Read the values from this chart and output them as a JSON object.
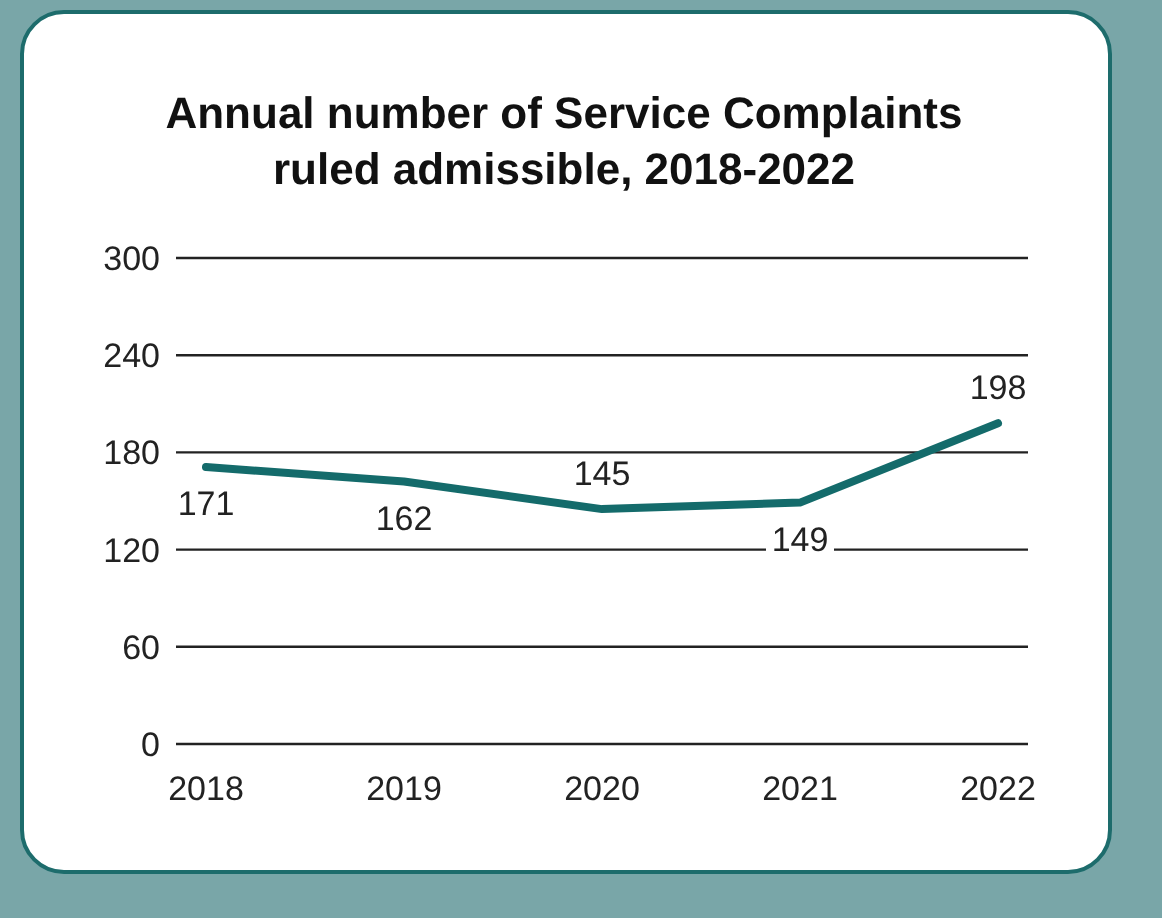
{
  "chart_data": {
    "type": "line",
    "title": "Annual number of Service Complaints ruled admissible, 2018-2022",
    "categories": [
      "2018",
      "2019",
      "2020",
      "2021",
      "2022"
    ],
    "series": [
      {
        "color": "#146b6b",
        "values": [
          171,
          162,
          145,
          149,
          198
        ]
      }
    ],
    "ylim": [
      0,
      300
    ],
    "yticks": [
      0,
      60,
      120,
      180,
      240,
      300
    ],
    "grid": "y",
    "data_labels": true,
    "marker": "none",
    "line_style": "solid",
    "legend": false
  }
}
